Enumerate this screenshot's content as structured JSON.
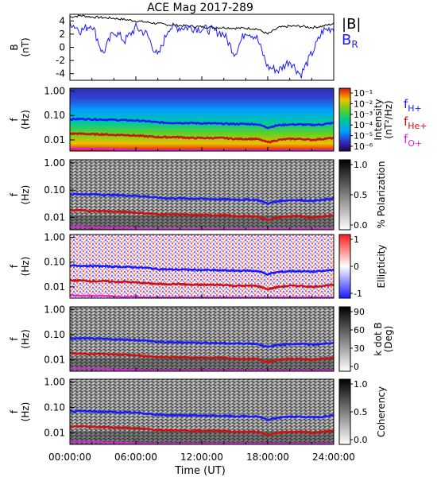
{
  "title": "ACE Mag 2017-289",
  "x_axis": {
    "label": "Time (UT)",
    "ticks": [
      "00:00:00",
      "06:00:00",
      "12:00:00",
      "18:00:00",
      "24:00:00"
    ],
    "range_hours": [
      0,
      24
    ]
  },
  "legend_top": {
    "b_total": "|B|",
    "b_r_base": "B",
    "b_r_sub": "R",
    "b_total_color": "#000000",
    "b_r_color": "#1a1aff"
  },
  "freq_legend": {
    "h_base": "f",
    "h_sub": "H+",
    "h_color": "#1a1aff",
    "he_base": "f",
    "he_sub": "He+",
    "he_color": "#cc1111",
    "o_base": "f",
    "o_sub": "O+",
    "o_color": "#dd22dd"
  },
  "panels": [
    {
      "id": "b-field",
      "ylabel_top": "B",
      "ylabel_bottom": "(nT)",
      "yticks": [
        "4",
        "2",
        "0",
        "-2",
        "-4"
      ],
      "ylim": [
        -5,
        5
      ]
    },
    {
      "id": "intensity",
      "ylabel_top": "f",
      "ylabel_bottom": "(Hz)",
      "yticks": [
        "1.00",
        "0.10",
        "0.01"
      ],
      "colorbar_ticks": [
        "10⁻¹",
        "10⁻²",
        "10⁻³",
        "10⁻⁴",
        "10⁻⁵",
        "10⁻⁶"
      ],
      "colorbar_label_1": "Intensity",
      "colorbar_label_2": "(nT²/Hz)",
      "colormap": "rainbow"
    },
    {
      "id": "polarization",
      "ylabel_top": "f",
      "ylabel_bottom": "(Hz)",
      "yticks": [
        "1.00",
        "0.10",
        "0.01"
      ],
      "colorbar_ticks": [
        "1.0",
        "0.5",
        "0.0"
      ],
      "colorbar_label_1": "% Polarization",
      "colormap": "gray"
    },
    {
      "id": "ellipticity",
      "ylabel_top": "f",
      "ylabel_bottom": "(Hz)",
      "yticks": [
        "1.00",
        "0.10",
        "0.01"
      ],
      "colorbar_ticks": [
        "1",
        "0",
        "-1"
      ],
      "colorbar_label_1": "Ellipticity",
      "colormap": "redblue"
    },
    {
      "id": "kdotb",
      "ylabel_top": "f",
      "ylabel_bottom": "(Hz)",
      "yticks": [
        "1.00",
        "0.10",
        "0.01"
      ],
      "colorbar_ticks": [
        "90",
        "60",
        "30",
        "0"
      ],
      "colorbar_label_1": "k dot B",
      "colorbar_label_2": "(Deg)",
      "colormap": "gray"
    },
    {
      "id": "coherency",
      "ylabel_top": "f",
      "ylabel_bottom": "(Hz)",
      "yticks": [
        "1.00",
        "0.10",
        "0.01"
      ],
      "colorbar_ticks": [
        "1.0",
        "0.5",
        "0.0"
      ],
      "colorbar_label_1": "Coherency",
      "colormap": "gray"
    }
  ],
  "chart_data": {
    "type": "line",
    "x_unit": "hours UT",
    "x": [
      0,
      1,
      2,
      3,
      4,
      5,
      6,
      7,
      8,
      9,
      10,
      11,
      12,
      13,
      14,
      15,
      16,
      17,
      18,
      19,
      20,
      21,
      22,
      23,
      24
    ],
    "series": [
      {
        "name": "|B|",
        "color": "#000000",
        "values": [
          4.6,
          4.8,
          4.6,
          4.5,
          4.4,
          4.2,
          4.0,
          3.8,
          3.6,
          3.4,
          3.3,
          3.2,
          3.1,
          3.0,
          3.0,
          2.9,
          2.9,
          2.8,
          2.0,
          3.0,
          3.2,
          3.2,
          3.0,
          3.2,
          3.6
        ]
      },
      {
        "name": "B_R",
        "color": "#1a1aff",
        "values": [
          3.8,
          2.5,
          3.5,
          -1.0,
          2.5,
          1.0,
          3.0,
          2.0,
          -1.5,
          3.0,
          3.0,
          3.0,
          2.8,
          2.6,
          2.0,
          -1.0,
          2.5,
          1.5,
          -3.0,
          -3.5,
          -2.0,
          -4.2,
          -1.0,
          2.5,
          3.0
        ]
      },
      {
        "name": "fH+",
        "color": "#1a1aff",
        "unit": "Hz",
        "values": [
          0.07,
          0.072,
          0.07,
          0.068,
          0.066,
          0.064,
          0.062,
          0.058,
          0.052,
          0.05,
          0.05,
          0.049,
          0.048,
          0.047,
          0.046,
          0.045,
          0.045,
          0.044,
          0.032,
          0.04,
          0.043,
          0.043,
          0.041,
          0.043,
          0.05
        ]
      },
      {
        "name": "fHe+",
        "color": "#cc1111",
        "unit": "Hz",
        "values": [
          0.018,
          0.018,
          0.017,
          0.017,
          0.016,
          0.016,
          0.015,
          0.014,
          0.013,
          0.013,
          0.013,
          0.012,
          0.012,
          0.012,
          0.012,
          0.011,
          0.011,
          0.011,
          0.008,
          0.01,
          0.011,
          0.011,
          0.01,
          0.011,
          0.012
        ]
      },
      {
        "name": "fO+",
        "color": "#dd22dd",
        "unit": "Hz",
        "values": [
          0.0045,
          0.0045,
          0.0043,
          0.0043,
          0.0041,
          0.004,
          0.0039,
          0.0036,
          0.0033,
          0.0032,
          0.0032,
          0.0031,
          0.003,
          0.003,
          0.0029,
          0.0028,
          0.0028,
          0.0028,
          0.002,
          0.0025,
          0.0027,
          0.0027,
          0.0026,
          0.0027,
          0.0031
        ]
      }
    ],
    "freq_axis": {
      "scale": "log",
      "range_hz": [
        0.0035,
        1.3
      ]
    }
  }
}
